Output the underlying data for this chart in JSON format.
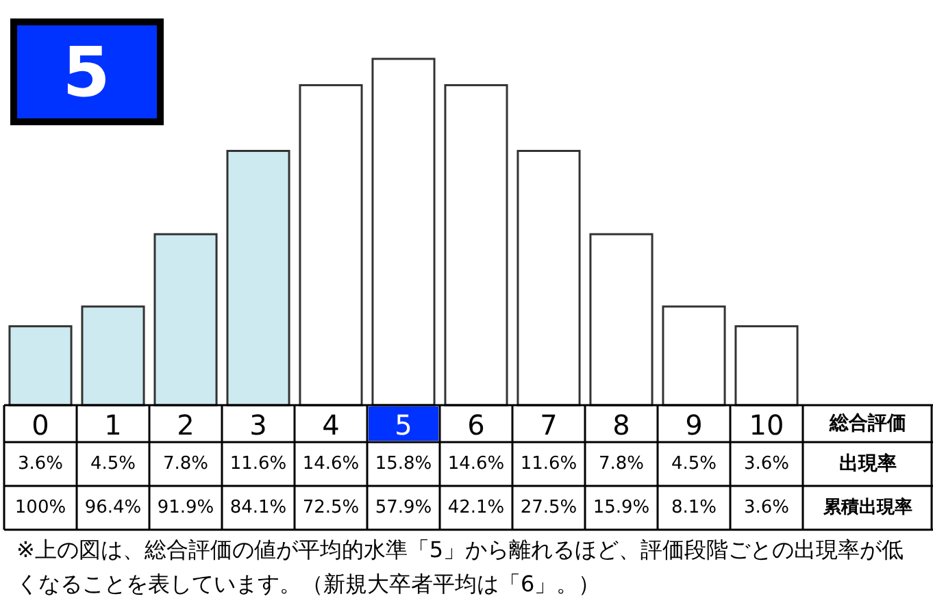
{
  "chart_data": {
    "type": "bar",
    "xlabel": "総合評価",
    "categories": [
      "0",
      "1",
      "2",
      "3",
      "4",
      "5",
      "6",
      "7",
      "8",
      "9",
      "10"
    ],
    "series": [
      {
        "name": "出現率",
        "values": [
          3.6,
          4.5,
          7.8,
          11.6,
          14.6,
          15.8,
          14.6,
          11.6,
          7.8,
          4.5,
          3.6
        ],
        "colors": [
          "#cceaf0",
          "#cceaf0",
          "#cceaf0",
          "#cceaf0",
          "#ffffff",
          "#ffffff",
          "#ffffff",
          "#ffffff",
          "#ffffff",
          "#ffffff",
          "#ffffff"
        ],
        "value_labels": [
          "3.6%",
          "4.5%",
          "7.8%",
          "11.6%",
          "14.6%",
          "15.8%",
          "14.6%",
          "11.6%",
          "7.8%",
          "4.5%",
          "3.6%"
        ]
      }
    ],
    "annotations": [
      "5",
      "累積出現率",
      "100%",
      "96.4%",
      "91.9%",
      "84.1%",
      "72.5%",
      "57.9%",
      "42.1%",
      "27.5%",
      "15.9%",
      "8.1%",
      "3.6%",
      "※上の図は、総合評価の値が平均的水準「5」から離れるほど、評価段階ごとの出現率が低くなることを表しています。（新規大卒者平均は「6」。）"
    ],
    "grid": false
  }
}
